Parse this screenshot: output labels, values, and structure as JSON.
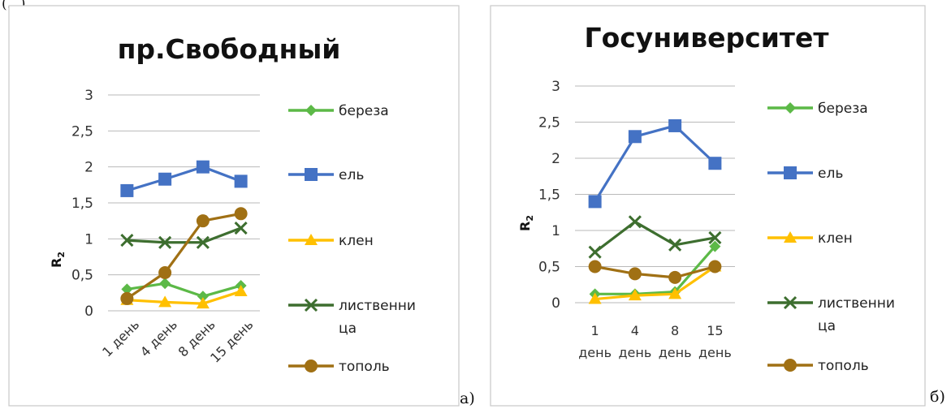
{
  "top_fragment": "(...)",
  "chart_data": [
    {
      "type": "line",
      "title": "пр.Свободный",
      "ylabel": "R",
      "ylabel_sub": "2",
      "xlabel": "",
      "categories": [
        "1 день",
        "4 день",
        "8 день",
        "15 день"
      ],
      "ylim": [
        0,
        3
      ],
      "yticks": [
        "0",
        "0,5",
        "1",
        "1,5",
        "2",
        "2,5",
        "3"
      ],
      "grid": true,
      "legend_position": "right",
      "panel_label": "а)",
      "series": [
        {
          "name": "береза",
          "values": [
            0.3,
            0.38,
            0.2,
            0.35
          ],
          "color": "#5cb947",
          "marker": "diamond"
        },
        {
          "name": "ель",
          "values": [
            1.67,
            1.83,
            2.0,
            1.8
          ],
          "color": "#4472c4",
          "marker": "square"
        },
        {
          "name": "клен",
          "values": [
            0.15,
            0.12,
            0.1,
            0.27
          ],
          "color": "#ffc000",
          "marker": "triangle"
        },
        {
          "name": "лиственни ца",
          "values": [
            0.98,
            0.95,
            0.95,
            1.15
          ],
          "color": "#3d6e2f",
          "marker": "x"
        },
        {
          "name": "тополь",
          "values": [
            0.17,
            0.53,
            1.25,
            1.35
          ],
          "color": "#a07014",
          "marker": "circle"
        }
      ]
    },
    {
      "type": "line",
      "title": "Госуниверситет",
      "ylabel": "R",
      "ylabel_sub": "2",
      "xlabel": "",
      "categories": [
        "1 день",
        "4 день",
        "8 день",
        "15 день"
      ],
      "ylim": [
        0,
        3
      ],
      "yticks": [
        "0",
        "0,5",
        "1",
        "1,5",
        "2",
        "2,5",
        "3"
      ],
      "grid": true,
      "legend_position": "right",
      "panel_label": "б)",
      "series": [
        {
          "name": "береза",
          "values": [
            0.12,
            0.12,
            0.15,
            0.78
          ],
          "color": "#5cb947",
          "marker": "diamond"
        },
        {
          "name": "ель",
          "values": [
            1.4,
            2.3,
            2.45,
            1.93
          ],
          "color": "#4472c4",
          "marker": "square"
        },
        {
          "name": "клен",
          "values": [
            0.05,
            0.1,
            0.12,
            0.5
          ],
          "color": "#ffc000",
          "marker": "triangle"
        },
        {
          "name": "лиственни ца",
          "values": [
            0.7,
            1.12,
            0.8,
            0.9
          ],
          "color": "#3d6e2f",
          "marker": "x"
        },
        {
          "name": "тополь",
          "values": [
            0.5,
            0.4,
            0.35,
            0.5
          ],
          "color": "#a07014",
          "marker": "circle"
        }
      ]
    }
  ]
}
